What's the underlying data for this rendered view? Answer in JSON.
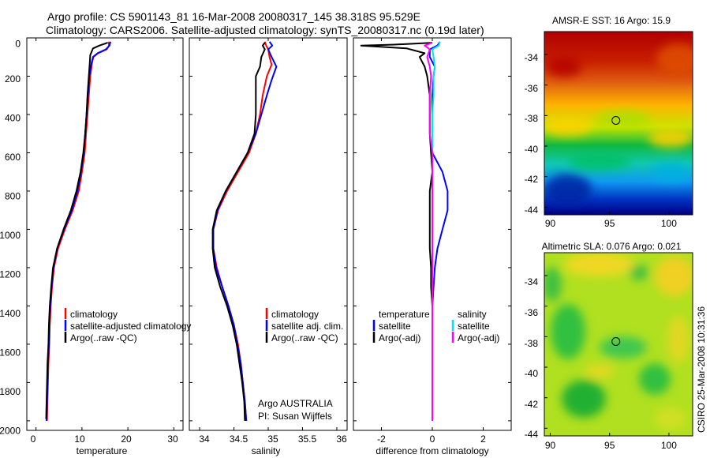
{
  "header": {
    "title1": "Argo profile: CS 5901143_81 16-Mar-2008 20080317_145 38.318S 95.529E",
    "title2": "Climatology: CARS2006. Satellite-adjusted climatology: synTS_20080317.nc (0.19d later)"
  },
  "side_label": "CSIRO 25-Mar-2008 10:31:36",
  "colors": {
    "climatology": "#ff0000",
    "satellite": "#0000ff",
    "argo": "#000000",
    "sat_sal_diff": "#00e5ee",
    "argo_sal_diff": "#ff00ff"
  },
  "chart_data": [
    {
      "type": "line",
      "xlabel": "temperature",
      "xticks": [
        "0",
        "10",
        "20",
        "30"
      ],
      "yticks": [
        "0",
        "200",
        "400",
        "600",
        "800",
        "1000",
        "1200",
        "1400",
        "1600",
        "1800",
        "2000"
      ],
      "xlim": [
        -2,
        32
      ],
      "ylim": [
        0,
        2050
      ],
      "y_reversed": true,
      "legend": [
        "climatology",
        "satellite-adjusted climatology",
        "Argo(..raw -QC)"
      ],
      "legend_placement": "lower-right",
      "series": [
        {
          "name": "climatology",
          "color": "#ff0000",
          "points": [
            [
              15.8,
              20
            ],
            [
              15.9,
              40
            ],
            [
              15.4,
              60
            ],
            [
              13.5,
              80
            ],
            [
              12.5,
              100
            ],
            [
              12.2,
              130
            ],
            [
              11.8,
              200
            ],
            [
              11.5,
              300
            ],
            [
              11.2,
              400
            ],
            [
              10.9,
              500
            ],
            [
              10.6,
              600
            ],
            [
              10.0,
              700
            ],
            [
              9.3,
              800
            ],
            [
              8.0,
              900
            ],
            [
              6.3,
              1000
            ],
            [
              4.8,
              1100
            ],
            [
              3.9,
              1200
            ],
            [
              3.5,
              1300
            ],
            [
              3.2,
              1400
            ],
            [
              3.0,
              1500
            ],
            [
              2.9,
              1600
            ],
            [
              2.7,
              1700
            ],
            [
              2.6,
              1800
            ],
            [
              2.5,
              1900
            ],
            [
              2.4,
              2000
            ]
          ]
        },
        {
          "name": "satellite-adjusted climatology",
          "color": "#0000ff",
          "points": [
            [
              16.2,
              20
            ],
            [
              16.0,
              40
            ],
            [
              15.2,
              60
            ],
            [
              13.4,
              80
            ],
            [
              12.4,
              100
            ],
            [
              12.1,
              130
            ],
            [
              11.6,
              200
            ],
            [
              11.3,
              300
            ],
            [
              11.0,
              400
            ],
            [
              10.7,
              500
            ],
            [
              10.4,
              600
            ],
            [
              9.8,
              700
            ],
            [
              9.0,
              800
            ],
            [
              7.8,
              900
            ],
            [
              6.1,
              1000
            ],
            [
              4.6,
              1100
            ],
            [
              3.8,
              1200
            ],
            [
              3.4,
              1300
            ],
            [
              3.1,
              1400
            ],
            [
              2.9,
              1500
            ],
            [
              2.8,
              1600
            ],
            [
              2.6,
              1700
            ],
            [
              2.5,
              1800
            ],
            [
              2.4,
              1900
            ],
            [
              2.3,
              2000
            ]
          ]
        },
        {
          "name": "Argo(..raw -QC)",
          "color": "#000000",
          "points": [
            [
              15.6,
              25
            ],
            [
              15.0,
              30
            ],
            [
              13.8,
              40
            ],
            [
              12.4,
              55
            ],
            [
              11.8,
              90
            ],
            [
              11.7,
              130
            ],
            [
              11.5,
              200
            ],
            [
              11.2,
              300
            ],
            [
              11.0,
              400
            ],
            [
              10.7,
              500
            ],
            [
              10.3,
              600
            ],
            [
              9.7,
              700
            ],
            [
              8.8,
              800
            ],
            [
              7.6,
              900
            ],
            [
              6.0,
              1000
            ],
            [
              4.6,
              1100
            ],
            [
              3.7,
              1200
            ],
            [
              3.3,
              1300
            ],
            [
              3.0,
              1400
            ],
            [
              2.8,
              1500
            ],
            [
              2.7,
              1600
            ],
            [
              2.5,
              1700
            ],
            [
              2.4,
              1800
            ],
            [
              2.3,
              1900
            ],
            [
              2.2,
              1990
            ]
          ]
        }
      ]
    },
    {
      "type": "line",
      "xlabel": "salinity",
      "xticks": [
        "34",
        "34.5",
        "35",
        "35.5",
        "36"
      ],
      "xlim": [
        33.85,
        36.15
      ],
      "ylim": [
        0,
        2050
      ],
      "y_reversed": true,
      "legend": [
        "climatology",
        "satellite adj. clim.",
        "Argo(..raw -QC)"
      ],
      "legend_placement": "lower-right",
      "annotation": [
        "Argo AUSTRALIA",
        "PI: Susan Wijffels"
      ],
      "series": [
        {
          "name": "climatology",
          "color": "#ff0000",
          "points": [
            [
              34.95,
              20
            ],
            [
              34.97,
              40
            ],
            [
              35.0,
              60
            ],
            [
              35.02,
              100
            ],
            [
              35.05,
              140
            ],
            [
              34.98,
              200
            ],
            [
              34.92,
              300
            ],
            [
              34.88,
              400
            ],
            [
              34.82,
              500
            ],
            [
              34.72,
              600
            ],
            [
              34.56,
              700
            ],
            [
              34.4,
              800
            ],
            [
              34.27,
              900
            ],
            [
              34.2,
              1000
            ],
            [
              34.2,
              1100
            ],
            [
              34.25,
              1200
            ],
            [
              34.33,
              1300
            ],
            [
              34.42,
              1400
            ],
            [
              34.5,
              1500
            ],
            [
              34.56,
              1600
            ],
            [
              34.6,
              1700
            ],
            [
              34.63,
              1800
            ],
            [
              34.66,
              1900
            ],
            [
              34.68,
              2000
            ]
          ]
        },
        {
          "name": "satellite adj. clim.",
          "color": "#0000ff",
          "points": [
            [
              35.02,
              20
            ],
            [
              35.06,
              40
            ],
            [
              35.0,
              60
            ],
            [
              35.05,
              100
            ],
            [
              35.12,
              150
            ],
            [
              35.05,
              220
            ],
            [
              34.98,
              300
            ],
            [
              34.9,
              400
            ],
            [
              34.82,
              500
            ],
            [
              34.7,
              600
            ],
            [
              34.54,
              700
            ],
            [
              34.38,
              800
            ],
            [
              34.26,
              900
            ],
            [
              34.2,
              1000
            ],
            [
              34.2,
              1100
            ],
            [
              34.24,
              1200
            ],
            [
              34.33,
              1300
            ],
            [
              34.42,
              1400
            ],
            [
              34.5,
              1500
            ],
            [
              34.55,
              1600
            ],
            [
              34.6,
              1700
            ],
            [
              34.63,
              1800
            ],
            [
              34.66,
              1900
            ],
            [
              34.68,
              2000
            ]
          ]
        },
        {
          "name": "Argo(..raw -QC)",
          "color": "#000000",
          "points": [
            [
              34.95,
              25
            ],
            [
              34.92,
              40
            ],
            [
              34.95,
              60
            ],
            [
              34.9,
              100
            ],
            [
              34.88,
              150
            ],
            [
              34.82,
              200
            ],
            [
              34.82,
              300
            ],
            [
              34.82,
              400
            ],
            [
              34.8,
              500
            ],
            [
              34.7,
              600
            ],
            [
              34.54,
              700
            ],
            [
              34.38,
              800
            ],
            [
              34.25,
              900
            ],
            [
              34.19,
              1000
            ],
            [
              34.19,
              1100
            ],
            [
              34.22,
              1200
            ],
            [
              34.3,
              1300
            ],
            [
              34.4,
              1400
            ],
            [
              34.48,
              1500
            ],
            [
              34.54,
              1600
            ],
            [
              34.58,
              1700
            ],
            [
              34.62,
              1800
            ],
            [
              34.65,
              1900
            ],
            [
              34.66,
              2000
            ]
          ]
        }
      ]
    },
    {
      "type": "line",
      "xlabel": "difference from climatology",
      "xticks": [
        "-2",
        "0",
        "2"
      ],
      "xlim": [
        -3.1,
        3.1
      ],
      "ylim": [
        0,
        2050
      ],
      "y_reversed": true,
      "legend": [
        "temperature",
        "satellite",
        "Argo(-adj)",
        "salinity",
        "satellite",
        "Argo(-adj)"
      ],
      "legend_placement": "lower-center",
      "series": [
        {
          "name": "satellite",
          "color": "#0000ff",
          "points": [
            [
              0.3,
              20
            ],
            [
              0.2,
              40
            ],
            [
              -0.1,
              60
            ],
            [
              -0.1,
              100
            ],
            [
              0.1,
              150
            ],
            [
              0.05,
              200
            ],
            [
              0.0,
              300
            ],
            [
              0.0,
              400
            ],
            [
              0.0,
              500
            ],
            [
              0.0,
              600
            ],
            [
              0.4,
              700
            ],
            [
              0.6,
              800
            ],
            [
              0.6,
              900
            ],
            [
              0.4,
              1000
            ],
            [
              0.2,
              1100
            ],
            [
              0.1,
              1200
            ],
            [
              0.05,
              1300
            ],
            [
              0.0,
              1400
            ],
            [
              0.0,
              1500
            ],
            [
              0.0,
              1600
            ],
            [
              0.0,
              1700
            ],
            [
              0.0,
              1800
            ],
            [
              0.0,
              1900
            ],
            [
              0.0,
              2000
            ]
          ]
        },
        {
          "name": "Argo(-adj)",
          "color": "#000000",
          "points": [
            [
              0.0,
              25
            ],
            [
              -1.5,
              35
            ],
            [
              -2.8,
              40
            ],
            [
              -1.0,
              55
            ],
            [
              -0.3,
              80
            ],
            [
              -0.5,
              100
            ],
            [
              -0.3,
              150
            ],
            [
              -0.2,
              200
            ],
            [
              -0.1,
              300
            ],
            [
              -0.1,
              400
            ],
            [
              -0.1,
              500
            ],
            [
              -0.05,
              600
            ],
            [
              0.0,
              700
            ],
            [
              -0.1,
              800
            ],
            [
              -0.1,
              900
            ],
            [
              -0.1,
              1000
            ],
            [
              -0.1,
              1100
            ],
            [
              -0.05,
              1200
            ],
            [
              -0.05,
              1300
            ],
            [
              0.0,
              1400
            ],
            [
              0.0,
              1500
            ],
            [
              0.0,
              1600
            ],
            [
              0.0,
              1700
            ],
            [
              0.0,
              1800
            ],
            [
              0.0,
              1900
            ],
            [
              0.0,
              2000
            ]
          ]
        },
        {
          "name": "satellite",
          "color": "#00e5ee",
          "points": [
            [
              0.3,
              20
            ],
            [
              0.25,
              40
            ],
            [
              0.0,
              60
            ],
            [
              0.05,
              100
            ],
            [
              0.1,
              150
            ],
            [
              0.05,
              200
            ],
            [
              0.05,
              300
            ],
            [
              0.0,
              400
            ],
            [
              0.0,
              600
            ],
            [
              0.0,
              800
            ],
            [
              0.0,
              1000
            ],
            [
              0.0,
              1200
            ],
            [
              0.0,
              1400
            ],
            [
              0.0,
              1600
            ],
            [
              0.0,
              1800
            ],
            [
              0.0,
              2000
            ]
          ]
        },
        {
          "name": "Argo(-adj)",
          "color": "#ff00ff",
          "points": [
            [
              0.0,
              25
            ],
            [
              -0.3,
              40
            ],
            [
              -0.1,
              60
            ],
            [
              -0.2,
              100
            ],
            [
              -0.1,
              150
            ],
            [
              -0.05,
              200
            ],
            [
              -0.1,
              300
            ],
            [
              -0.1,
              400
            ],
            [
              -0.1,
              500
            ],
            [
              0.0,
              600
            ],
            [
              0.0,
              800
            ],
            [
              0.0,
              1000
            ],
            [
              0.0,
              1200
            ],
            [
              0.0,
              1400
            ],
            [
              0.0,
              1600
            ],
            [
              0.0,
              1800
            ],
            [
              0.0,
              2000
            ]
          ]
        }
      ]
    },
    {
      "type": "heatmap",
      "title": "AMSR-E SST: 16 Argo: 15.9",
      "xticks": [
        "90",
        "95",
        "100"
      ],
      "yticks": [
        "-34",
        "-36",
        "-38",
        "-40",
        "-42",
        "-44"
      ],
      "xlim": [
        89.5,
        102.0
      ],
      "ylim": [
        -44.5,
        -32.5
      ],
      "marker": {
        "lon": 95.529,
        "lat": -38.318
      }
    },
    {
      "type": "heatmap",
      "title": "Altimetric SLA: 0.076 Argo: 0.021",
      "xticks": [
        "90",
        "95",
        "100"
      ],
      "yticks": [
        "-34",
        "-36",
        "-38",
        "-40",
        "-42",
        "-44"
      ],
      "xlim": [
        89.5,
        102.0
      ],
      "ylim": [
        -44.5,
        -32.5
      ],
      "marker": {
        "lon": 95.529,
        "lat": -38.318
      }
    }
  ]
}
